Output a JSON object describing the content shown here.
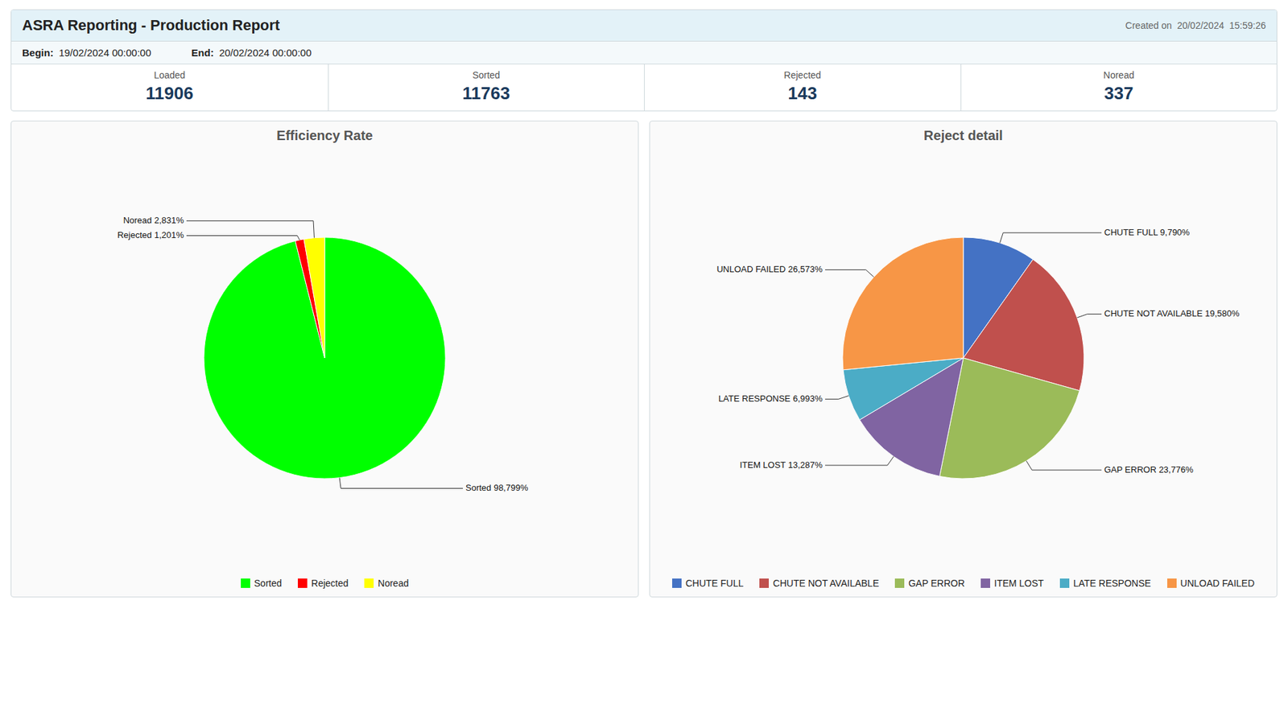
{
  "chart_data": [
    {
      "type": "table",
      "title": "ASRA Reporting - Production Report",
      "subtitle": "Created on  20/02/2024  15:59:26",
      "annotations": [
        "Begin:",
        "19/02/2024 00:00:00",
        "End:",
        "20/02/2024 00:00:00"
      ],
      "categories": [
        "Loaded",
        "Sorted",
        "Rejected",
        "Noread"
      ],
      "values": [
        11906,
        11763,
        143,
        337
      ]
    },
    {
      "type": "pie",
      "title": "Efficiency Rate",
      "categories": [
        "Sorted",
        "Rejected",
        "Noread"
      ],
      "values": [
        98.799,
        1.201,
        2.831
      ],
      "colors": [
        "#00ff00",
        "#ff0000",
        "#ffff00"
      ],
      "data_labels": true,
      "value_labels": [
        "Sorted 98,799%",
        "Rejected 1,201%",
        "Noread 2,831%"
      ],
      "legend": "bottom"
    },
    {
      "type": "pie",
      "title": "Reject detail",
      "categories": [
        "CHUTE FULL",
        "CHUTE NOT AVAILABLE",
        "GAP ERROR",
        "ITEM LOST",
        "LATE RESPONSE",
        "UNLOAD FAILED"
      ],
      "values": [
        9.79,
        19.58,
        23.776,
        13.287,
        6.993,
        26.573
      ],
      "colors": [
        "#4472c4",
        "#c0504d",
        "#9bbb59",
        "#8064a2",
        "#4bacc6",
        "#f79646"
      ],
      "data_labels": true,
      "value_labels": [
        "CHUTE FULL 9,790%",
        "CHUTE NOT AVAILABLE 19,580%",
        "GAP ERROR 23,776%",
        "ITEM LOST 13,287%",
        "LATE RESPONSE 6,993%",
        "UNLOAD FAILED 26,573%"
      ],
      "legend": "bottom"
    }
  ]
}
